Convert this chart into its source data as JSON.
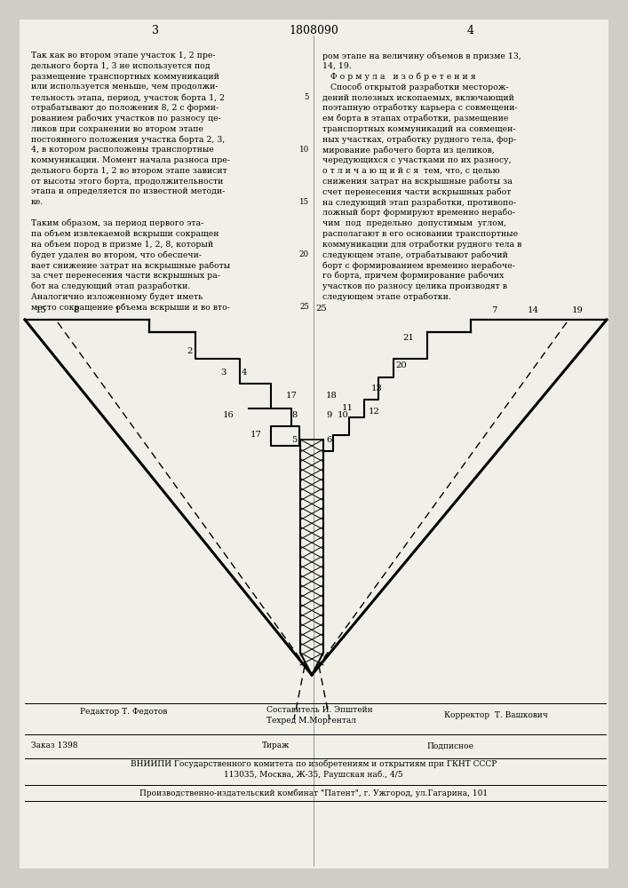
{
  "bg_color": "#d0cdc8",
  "page_color": "#f2efe8",
  "header_number": "1808090",
  "page_left": "3",
  "page_right": "4",
  "footer": {
    "editor": "Редактор Т. Федотов",
    "composer": "Составитель И. Эпштейн",
    "tech": "Техред М.Моргентал",
    "corrector": "Корректор  Т. Вашкович",
    "order": "Заказ 1398",
    "print": "Тираж",
    "signed": "Подписное",
    "org": "ВНИИПИ Государственного комитета по изобретениям и открытиям при ГКНТ СССР",
    "address": "113035, Москва, Ж-35, Раушская наб., 4/5",
    "publisher": "Производственно-издательский комбинат \"Патент\", г. Ужгород, ул.Гагарина, 101"
  },
  "left_text": "Так как во втором этапе участок 1, 2 предельного борта 1, 3 не используется под размещение транспортных коммуникаций или используется меньше, чем продолжительность этапа, период, участок борта 1, 2   5\nотрабатывают до положения 8, 2 с формированием рабочих участков по разносу целиков при сохранении во втором этапе постоянного положения участка борта 2, 3, 4, в котором расположены транспортные  10\nкоммуникации. Момент начала разноса предельного борта 1, 2 во втором этапе зависит от высоты этого борта, продолжительности этапа и определяется по известной методике.\n\nТаким образом, за период первого этапа объем извлекаемой вскрыши сокращен  15\nна объем пород в призме 1, 2, 8, который будет удален во втором, что обеспечивает снижение затрат на вскрышные работы за счет перенесения части вскрышных работ  20\nбот на следующий этап разработки.\nАналогично изложенному будет иметь место сокращение объема вскрыши и во вто-  25",
  "right_text": "ром этапе на величину объемов в призме 13, 14, 19.\n   Ф о р м у л а   и з о б р е т е н и я\n   Способ открытой разработки месторождений полезных ископаемых, включающий поэтапную отработку карьера с совмещением борта в этапах отработки, размещение транспортных коммуникаций на совмещенных участках, отработку рудного тела, формирование рабочего борта из целиков, чередующихся с участками по их разносу,\n   о т л и ч а ю щ и й с я  тем, что, с целью снижения затрат на вскрышные работы за счет перенесения части вскрышных работ на следующий этап разработки, противоположный борт формируют временно нерабочим под предельно допустимым углом, располагают в его основании транспортные коммуникации для отработки рудного тела в следующем этапе, отрабатывают рабочий борт с формированием временно нерабочего борта, причем формирование рабочих участков по разносу целика производят в следующем этапе отработки."
}
